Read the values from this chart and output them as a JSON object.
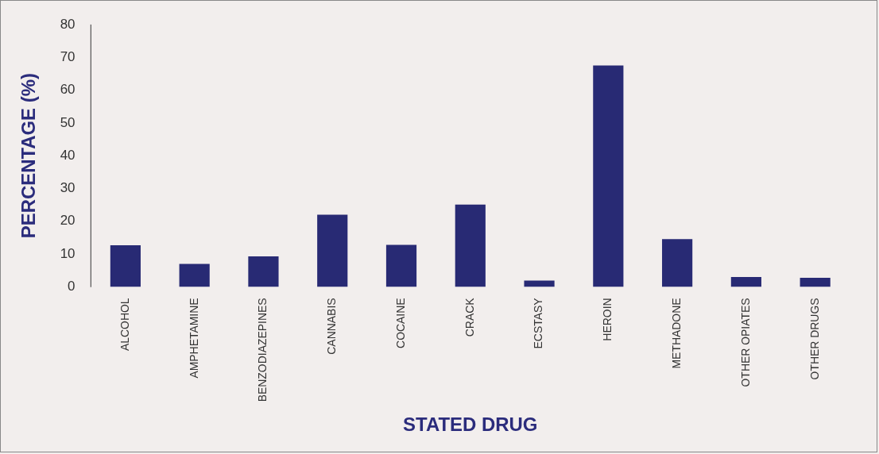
{
  "chart_data": {
    "type": "bar",
    "xlabel": "STATED DRUG",
    "ylabel": "PERCENTAGE (%)",
    "categories": [
      "ALCOHOL",
      "AMPHETAMINE",
      "BENZODIAZEPINES",
      "CANNABIS",
      "COCAINE",
      "CRACK",
      "ECSTASY",
      "HEROIN",
      "METHADONE",
      "OTHER OPIATES",
      "OTHER DRUGS"
    ],
    "values": [
      12.7,
      7.0,
      9.3,
      22.0,
      12.8,
      25.1,
      1.9,
      67.5,
      14.6,
      3.0,
      2.8
    ],
    "color": "#282a74",
    "ylim": [
      0,
      80
    ],
    "yticks": [
      0,
      10,
      20,
      30,
      40,
      50,
      60,
      70,
      80
    ],
    "grid": false,
    "legend": false
  }
}
